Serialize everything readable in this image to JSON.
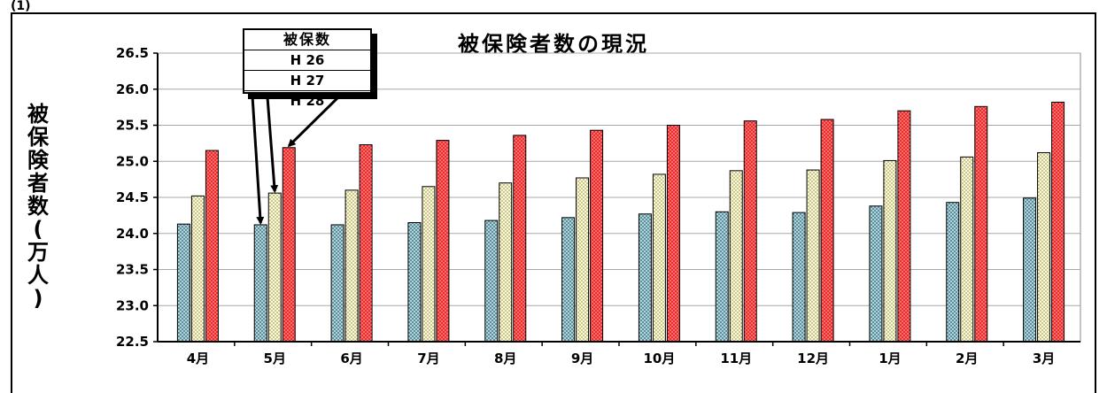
{
  "corner_text": "(1)",
  "chart_data": {
    "type": "bar",
    "title": "被保険者数の現況",
    "ylabel": "被保険者数(万人)",
    "xlabel": "",
    "ylim": [
      22.5,
      26.5
    ],
    "ytick_step": 0.5,
    "ytick_labels": [
      "22.5",
      "23.0",
      "23.5",
      "24.0",
      "24.5",
      "25.0",
      "25.5",
      "26.0",
      "26.5"
    ],
    "grid": true,
    "categories": [
      "4月",
      "5月",
      "6月",
      "7月",
      "8月",
      "9月",
      "10月",
      "11月",
      "12月",
      "1月",
      "2月",
      "3月"
    ],
    "legend": {
      "title": "被保数",
      "placement": "top-left",
      "entries": [
        "H 26",
        "H 27",
        "H 28"
      ]
    },
    "series": [
      {
        "name": "H 26",
        "color": "#3d7a84",
        "pattern": "crosshatch",
        "values": [
          24.13,
          24.12,
          24.12,
          24.15,
          24.18,
          24.22,
          24.27,
          24.3,
          24.29,
          24.38,
          24.43,
          24.49
        ]
      },
      {
        "name": "H 27",
        "color": "#fdfbd2",
        "pattern": "dots",
        "values": [
          24.52,
          24.56,
          24.6,
          24.65,
          24.7,
          24.77,
          24.82,
          24.87,
          24.88,
          25.01,
          25.06,
          25.12
        ]
      },
      {
        "name": "H 28",
        "color": "#ee2b2b",
        "pattern": "dots",
        "values": [
          25.15,
          25.19,
          25.23,
          25.29,
          25.36,
          25.43,
          25.5,
          25.56,
          25.58,
          25.7,
          25.76,
          25.82
        ]
      }
    ]
  }
}
